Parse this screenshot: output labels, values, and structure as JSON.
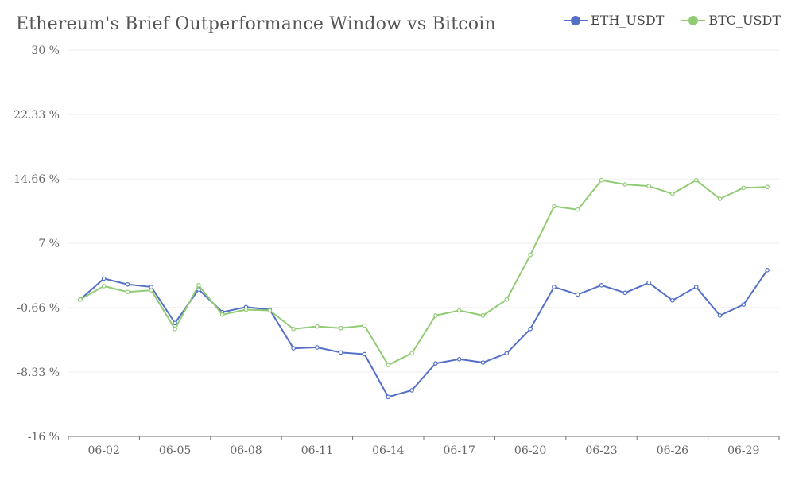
{
  "chart_data": {
    "type": "line",
    "title": "Ethereum's Brief Outperformance Window vs Bitcoin",
    "xlabel": "",
    "ylabel": "",
    "unit": "%",
    "ylim": [
      -16,
      30
    ],
    "yticks": [
      -16,
      -8.33,
      -0.66,
      7,
      14.66,
      22.33,
      30
    ],
    "ytick_labels": [
      "-16 %",
      "-8.33 %",
      "-0.66 %",
      "7 %",
      "14.66 %",
      "22.33 %",
      "30 %"
    ],
    "x": [
      "06-01",
      "06-02",
      "06-03",
      "06-04",
      "06-05",
      "06-06",
      "06-07",
      "06-08",
      "06-09",
      "06-10",
      "06-11",
      "06-12",
      "06-13",
      "06-14",
      "06-15",
      "06-16",
      "06-17",
      "06-18",
      "06-19",
      "06-20",
      "06-21",
      "06-22",
      "06-23",
      "06-24",
      "06-25",
      "06-26",
      "06-27",
      "06-28",
      "06-29",
      "06-30"
    ],
    "xtick_labels": [
      "06-02",
      "06-05",
      "06-08",
      "06-11",
      "06-14",
      "06-17",
      "06-20",
      "06-23",
      "06-26",
      "06-29"
    ],
    "grid": true,
    "legend_position": "top-right",
    "series": [
      {
        "name": "ETH_USDT",
        "color": "#5470c6",
        "values": [
          0.3,
          2.8,
          2.1,
          1.8,
          -2.5,
          1.5,
          -1.2,
          -0.6,
          -0.9,
          -5.5,
          -5.4,
          -6.0,
          -6.2,
          -11.3,
          -10.5,
          -7.3,
          -6.8,
          -7.2,
          -6.1,
          -3.2,
          1.8,
          0.9,
          2.0,
          1.1,
          2.3,
          0.2,
          1.8,
          -1.6,
          -0.3,
          3.8
        ]
      },
      {
        "name": "BTC_USDT",
        "color": "#91cc75",
        "values": [
          0.3,
          1.9,
          1.2,
          1.4,
          -3.2,
          2.0,
          -1.5,
          -0.9,
          -1.0,
          -3.2,
          -2.9,
          -3.1,
          -2.8,
          -7.5,
          -6.1,
          -1.6,
          -1.0,
          -1.6,
          0.3,
          5.6,
          11.4,
          11.0,
          14.5,
          14.0,
          13.8,
          12.9,
          14.5,
          12.3,
          13.6,
          13.7
        ]
      }
    ]
  }
}
